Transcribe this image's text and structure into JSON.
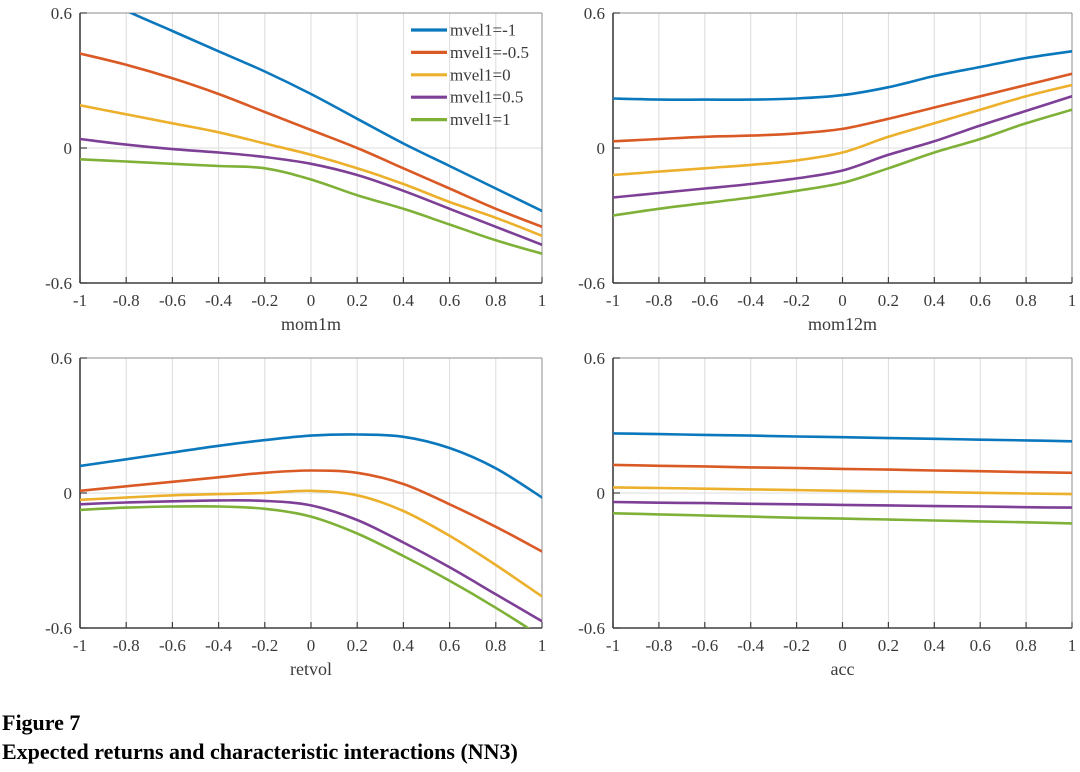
{
  "figure": {
    "label": "Figure 7",
    "title": "Expected returns and characteristic interactions (NN3)"
  },
  "colors": {
    "series_blue": "#0b78bd",
    "series_orange": "#da5a26",
    "series_yellow": "#ecb02c",
    "series_purple": "#7e3f96",
    "series_green": "#7fb138",
    "axis": "#3f3f3f",
    "box": "#8c8c8c",
    "grid": "#dcdcdc",
    "text": "#3a3a3a"
  },
  "legend": {
    "position": "top-right inside first subplot",
    "entries": [
      {
        "label": "mvel1=-1",
        "color": "#0b78bd"
      },
      {
        "label": "mvel1=-0.5",
        "color": "#da5a26"
      },
      {
        "label": "mvel1=0",
        "color": "#ecb02c"
      },
      {
        "label": "mvel1=0.5",
        "color": "#7e3f96"
      },
      {
        "label": "mvel1=1",
        "color": "#7fb138"
      }
    ]
  },
  "axes": {
    "xlim": [
      -1,
      1
    ],
    "ylim": [
      -0.6,
      0.6
    ],
    "x_ticks": [
      -1,
      -0.8,
      -0.6,
      -0.4,
      -0.2,
      0,
      0.2,
      0.4,
      0.6,
      0.8,
      1
    ],
    "x_tick_labels": [
      "-1",
      "-0.8",
      "-0.6",
      "-0.4",
      "-0.2",
      "0",
      "0.2",
      "0.4",
      "0.6",
      "0.8",
      "1"
    ],
    "y_ticks": [
      0.6,
      0,
      -0.6
    ],
    "y_tick_labels": [
      "0.6",
      "0",
      "-0.6"
    ],
    "grid": true
  },
  "chart_data": [
    {
      "type": "line",
      "xlabel": "mom1m",
      "x": [
        -1,
        -0.8,
        -0.6,
        -0.4,
        -0.2,
        0,
        0.2,
        0.4,
        0.6,
        0.8,
        1
      ],
      "xlim": [
        -1,
        1
      ],
      "ylim": [
        -0.6,
        0.6
      ],
      "legend": true,
      "series": [
        {
          "name": "mvel1=-1",
          "color": "#0b78bd",
          "values": [
            0.71,
            0.61,
            0.52,
            0.43,
            0.34,
            0.24,
            0.13,
            0.02,
            -0.08,
            -0.18,
            -0.28
          ]
        },
        {
          "name": "mvel1=-0.5",
          "color": "#da5a26",
          "values": [
            0.42,
            0.37,
            0.31,
            0.24,
            0.16,
            0.08,
            0.0,
            -0.09,
            -0.18,
            -0.27,
            -0.35
          ]
        },
        {
          "name": "mvel1=0",
          "color": "#ecb02c",
          "values": [
            0.19,
            0.15,
            0.11,
            0.07,
            0.02,
            -0.03,
            -0.09,
            -0.16,
            -0.24,
            -0.31,
            -0.39
          ]
        },
        {
          "name": "mvel1=0.5",
          "color": "#7e3f96",
          "values": [
            0.04,
            0.015,
            -0.005,
            -0.02,
            -0.04,
            -0.07,
            -0.12,
            -0.19,
            -0.27,
            -0.35,
            -0.43
          ]
        },
        {
          "name": "mvel1=1",
          "color": "#7fb138",
          "values": [
            -0.05,
            -0.06,
            -0.07,
            -0.08,
            -0.09,
            -0.14,
            -0.21,
            -0.27,
            -0.34,
            -0.41,
            -0.47
          ]
        }
      ]
    },
    {
      "type": "line",
      "xlabel": "mom12m",
      "x": [
        -1,
        -0.8,
        -0.6,
        -0.4,
        -0.2,
        0,
        0.2,
        0.4,
        0.6,
        0.8,
        1
      ],
      "xlim": [
        -1,
        1
      ],
      "ylim": [
        -0.6,
        0.6
      ],
      "legend": false,
      "series": [
        {
          "name": "mvel1=-1",
          "color": "#0b78bd",
          "values": [
            0.22,
            0.215,
            0.215,
            0.215,
            0.22,
            0.235,
            0.27,
            0.32,
            0.36,
            0.4,
            0.43
          ]
        },
        {
          "name": "mvel1=-0.5",
          "color": "#da5a26",
          "values": [
            0.03,
            0.04,
            0.05,
            0.055,
            0.065,
            0.085,
            0.13,
            0.18,
            0.23,
            0.28,
            0.33
          ]
        },
        {
          "name": "mvel1=0",
          "color": "#ecb02c",
          "values": [
            -0.12,
            -0.105,
            -0.09,
            -0.075,
            -0.055,
            -0.02,
            0.05,
            0.11,
            0.17,
            0.23,
            0.28
          ]
        },
        {
          "name": "mvel1=0.5",
          "color": "#7e3f96",
          "values": [
            -0.22,
            -0.2,
            -0.18,
            -0.16,
            -0.135,
            -0.1,
            -0.03,
            0.03,
            0.1,
            0.165,
            0.23
          ]
        },
        {
          "name": "mvel1=1",
          "color": "#7fb138",
          "values": [
            -0.3,
            -0.27,
            -0.245,
            -0.22,
            -0.19,
            -0.155,
            -0.09,
            -0.02,
            0.04,
            0.11,
            0.17
          ]
        }
      ]
    },
    {
      "type": "line",
      "xlabel": "retvol",
      "x": [
        -1,
        -0.8,
        -0.6,
        -0.4,
        -0.2,
        0,
        0.2,
        0.4,
        0.6,
        0.8,
        1
      ],
      "xlim": [
        -1,
        1
      ],
      "ylim": [
        -0.6,
        0.6
      ],
      "legend": false,
      "series": [
        {
          "name": "mvel1=-1",
          "color": "#0b78bd",
          "values": [
            0.12,
            0.15,
            0.18,
            0.21,
            0.235,
            0.255,
            0.26,
            0.25,
            0.2,
            0.11,
            -0.02
          ]
        },
        {
          "name": "mvel1=-0.5",
          "color": "#da5a26",
          "values": [
            0.01,
            0.03,
            0.05,
            0.07,
            0.09,
            0.1,
            0.09,
            0.04,
            -0.05,
            -0.15,
            -0.26
          ]
        },
        {
          "name": "mvel1=0",
          "color": "#ecb02c",
          "values": [
            -0.03,
            -0.02,
            -0.01,
            -0.005,
            0.0,
            0.01,
            -0.01,
            -0.08,
            -0.19,
            -0.32,
            -0.46
          ]
        },
        {
          "name": "mvel1=0.5",
          "color": "#7e3f96",
          "values": [
            -0.05,
            -0.042,
            -0.037,
            -0.033,
            -0.035,
            -0.055,
            -0.12,
            -0.22,
            -0.33,
            -0.45,
            -0.57
          ]
        },
        {
          "name": "mvel1=1",
          "color": "#7fb138",
          "values": [
            -0.075,
            -0.065,
            -0.06,
            -0.06,
            -0.07,
            -0.105,
            -0.18,
            -0.28,
            -0.39,
            -0.51,
            -0.64
          ]
        }
      ]
    },
    {
      "type": "line",
      "xlabel": "acc",
      "x": [
        -1,
        -0.8,
        -0.6,
        -0.4,
        -0.2,
        0,
        0.2,
        0.4,
        0.6,
        0.8,
        1
      ],
      "xlim": [
        -1,
        1
      ],
      "ylim": [
        -0.6,
        0.6
      ],
      "legend": false,
      "series": [
        {
          "name": "mvel1=-1",
          "color": "#0b78bd",
          "values": [
            0.265,
            0.262,
            0.258,
            0.255,
            0.251,
            0.248,
            0.244,
            0.241,
            0.237,
            0.234,
            0.23
          ]
        },
        {
          "name": "mvel1=-0.5",
          "color": "#da5a26",
          "values": [
            0.125,
            0.121,
            0.118,
            0.114,
            0.111,
            0.107,
            0.104,
            0.1,
            0.097,
            0.093,
            0.09
          ]
        },
        {
          "name": "mvel1=0",
          "color": "#ecb02c",
          "values": [
            0.025,
            0.022,
            0.019,
            0.016,
            0.013,
            0.01,
            0.007,
            0.004,
            0.001,
            -0.002,
            -0.005
          ]
        },
        {
          "name": "mvel1=0.5",
          "color": "#7e3f96",
          "values": [
            -0.04,
            -0.043,
            -0.045,
            -0.048,
            -0.05,
            -0.053,
            -0.055,
            -0.058,
            -0.06,
            -0.063,
            -0.065
          ]
        },
        {
          "name": "mvel1=1",
          "color": "#7fb138",
          "values": [
            -0.09,
            -0.095,
            -0.1,
            -0.105,
            -0.11,
            -0.114,
            -0.118,
            -0.122,
            -0.126,
            -0.13,
            -0.135
          ]
        }
      ]
    }
  ]
}
